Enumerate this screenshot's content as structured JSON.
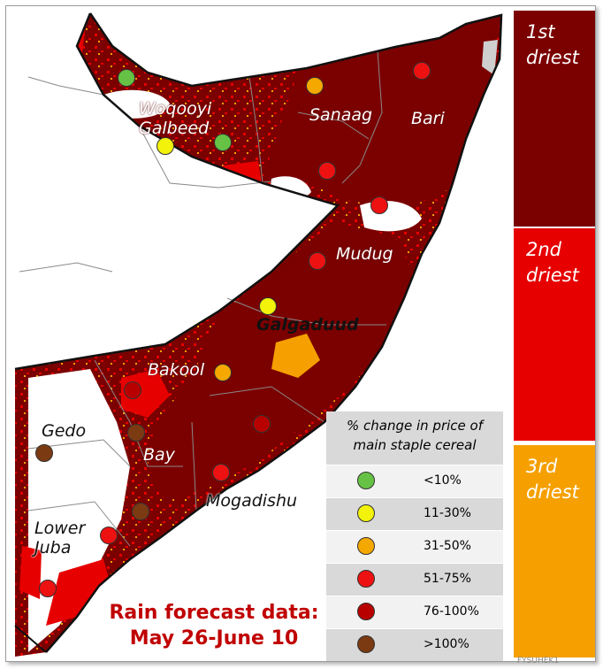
{
  "colors": {
    "first_driest": "#7b0000",
    "second_driest": "#e60000",
    "third_driest": "#f5a000",
    "border": "#111111"
  },
  "bands": [
    {
      "label_line1": "1st",
      "label_line2": "driest"
    },
    {
      "label_line1": "2nd",
      "label_line2": "driest"
    },
    {
      "label_line1": "3rd",
      "label_line2": "driest"
    }
  ],
  "regions": [
    {
      "name_line1": "Woqooyi",
      "name_line2": "Galbeed"
    },
    {
      "name_line1": "Sanaag"
    },
    {
      "name_line1": "Bari"
    },
    {
      "name_line1": "Mudug"
    },
    {
      "name_line1": "Galgaduud"
    },
    {
      "name_line1": "Bakool"
    },
    {
      "name_line1": "Gedo"
    },
    {
      "name_line1": "Bay"
    },
    {
      "name_line1": "Mogadishu"
    },
    {
      "name_line1": "Lower",
      "name_line2": "Juba"
    }
  ],
  "markers": [
    {
      "market": "Woqooyi Galbeed west",
      "category": "<10%"
    },
    {
      "market": "Woqooyi Galbeed south",
      "category": "11-30%"
    },
    {
      "market": "Woqooyi Galbeed east",
      "category": "<10%"
    },
    {
      "market": "Sanaag",
      "category": "31-50%"
    },
    {
      "market": "Bari",
      "category": "51-75%"
    },
    {
      "market": "Sanaag south",
      "category": "51-75%"
    },
    {
      "market": "Bari south",
      "category": "51-75%"
    },
    {
      "market": "Mudug",
      "category": "51-75%"
    },
    {
      "market": "Galgaduud",
      "category": "11-30%"
    },
    {
      "market": "Bakool",
      "category": "31-50%"
    },
    {
      "market": "Bakool west",
      "category": "76-100%"
    },
    {
      "market": "Middle Shabelle",
      "category": "76-100%"
    },
    {
      "market": "Bay north",
      "category": ">100%"
    },
    {
      "market": "Gedo",
      "category": ">100%"
    },
    {
      "market": "Mogadishu",
      "category": "51-75%"
    },
    {
      "market": "Bay south",
      "category": ">100%"
    },
    {
      "market": "Lower Juba north",
      "category": "51-75%"
    },
    {
      "market": "Lower Juba south",
      "category": "51-75%"
    }
  ],
  "legend": {
    "title_line1": "% change in price of",
    "title_line2": "main staple cereal",
    "items": [
      {
        "label": "<10%",
        "color": "#66c244"
      },
      {
        "label": "11-30%",
        "color": "#f2f20a"
      },
      {
        "label": "31-50%",
        "color": "#f5a800"
      },
      {
        "label": "51-75%",
        "color": "#ee1111"
      },
      {
        "label": "76-100%",
        "color": "#b80000"
      },
      {
        "label": ">100%",
        "color": "#7b3a12"
      }
    ]
  },
  "forecast": {
    "line1": "Rain forecast data:",
    "line2": "May 26-June 10"
  },
  "watermark": "FYSUHEK1"
}
